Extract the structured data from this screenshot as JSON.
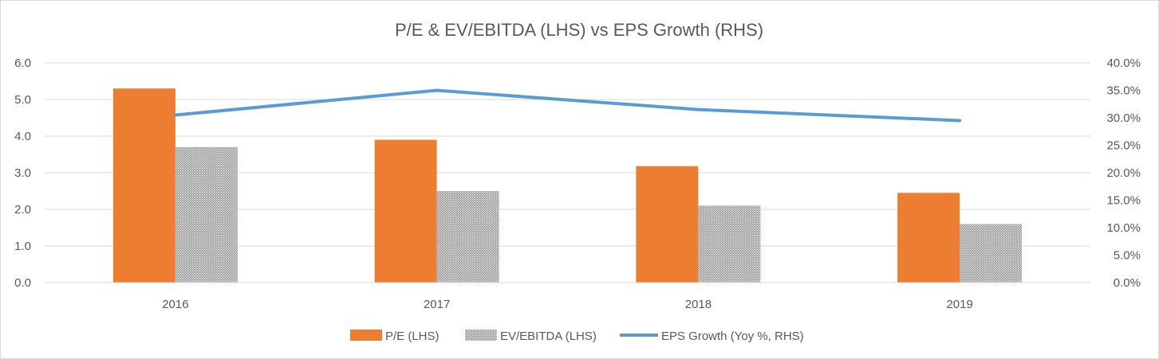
{
  "chart_data": {
    "type": "bar",
    "title": "P/E & EV/EBITDA (LHS) vs EPS Growth (RHS)",
    "categories": [
      "2016",
      "2017",
      "2018",
      "2019"
    ],
    "series": [
      {
        "name": "P/E (LHS)",
        "type": "bar",
        "axis": "left",
        "color": "#ed7d31",
        "values": [
          5.3,
          3.9,
          3.18,
          2.45
        ]
      },
      {
        "name": "EV/EBITDA (LHS)",
        "type": "bar",
        "axis": "left",
        "color": "#a5a5a5",
        "pattern": "dotted",
        "values": [
          3.7,
          2.5,
          2.1,
          1.6
        ]
      },
      {
        "name": "EPS Growth (Yoy %, RHS)",
        "type": "line",
        "axis": "right",
        "color": "#5b9bd5",
        "values": [
          30.5,
          35.0,
          31.5,
          29.5
        ]
      }
    ],
    "y_left": {
      "ylim": [
        0,
        6
      ],
      "ticks": [
        "0.0",
        "1.0",
        "2.0",
        "3.0",
        "4.0",
        "5.0",
        "6.0"
      ]
    },
    "y_right": {
      "ylim": [
        0,
        40
      ],
      "ticks": [
        "0.0%",
        "5.0%",
        "10.0%",
        "15.0%",
        "20.0%",
        "25.0%",
        "30.0%",
        "35.0%",
        "40.0%"
      ]
    },
    "grid": true,
    "legend_position": "bottom"
  }
}
